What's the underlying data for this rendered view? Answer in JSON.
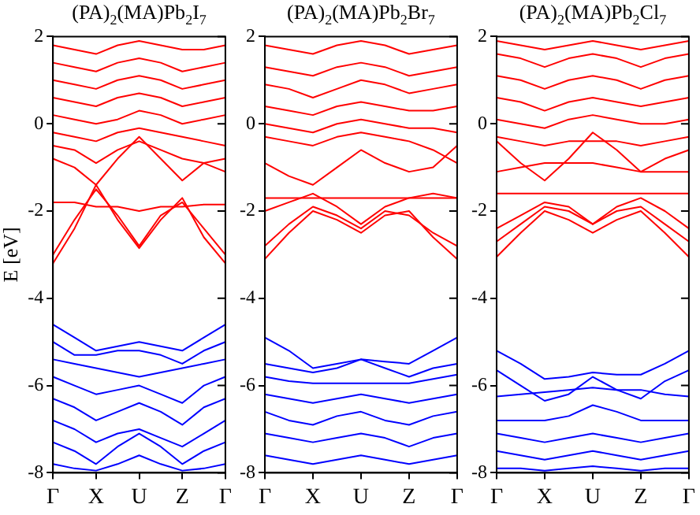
{
  "chart_data": [
    {
      "type": "line",
      "title": "(PA)$_{2}$(MA)Pb$_{2}$I$_{7}$",
      "ylabel": "E [eV]",
      "marker": "none",
      "line_style": "solid",
      "categories": [
        "Γ",
        null,
        "X",
        null,
        "U",
        null,
        "Z",
        null,
        "Γ"
      ],
      "ylim": [
        -8,
        2
      ],
      "yticks": [
        -8,
        -6,
        -4,
        -2,
        0,
        2
      ],
      "series": [
        {
          "color": "#ff0000",
          "values": [
            -3.2,
            -2.4,
            -1.4,
            -2.2,
            -2.85,
            -2.2,
            -1.7,
            -2.6,
            -3.2
          ]
        },
        {
          "color": "#ff0000",
          "values": [
            -3.0,
            -2.2,
            -1.5,
            -2.1,
            -2.8,
            -2.1,
            -1.8,
            -2.4,
            -3.0
          ]
        },
        {
          "color": "#ff0000",
          "values": [
            -1.8,
            -1.8,
            -1.9,
            -1.9,
            -2.0,
            -1.9,
            -1.9,
            -1.85,
            -1.85
          ]
        },
        {
          "color": "#ff0000",
          "values": [
            -0.8,
            -1.0,
            -1.4,
            -0.8,
            -0.3,
            -0.8,
            -1.3,
            -0.9,
            -0.8
          ]
        },
        {
          "color": "#ff0000",
          "values": [
            -0.5,
            -0.6,
            -0.9,
            -0.6,
            -0.4,
            -0.6,
            -0.8,
            -0.9,
            -1.1
          ]
        },
        {
          "color": "#ff0000",
          "values": [
            -0.2,
            -0.3,
            -0.4,
            -0.2,
            -0.1,
            -0.2,
            -0.3,
            -0.4,
            -0.5
          ]
        },
        {
          "color": "#ff0000",
          "values": [
            0.2,
            0.1,
            0,
            0.1,
            0.3,
            0.2,
            0,
            0.1,
            0.2
          ]
        },
        {
          "color": "#ff0000",
          "values": [
            0.6,
            0.5,
            0.4,
            0.6,
            0.7,
            0.6,
            0.4,
            0.5,
            0.6
          ]
        },
        {
          "color": "#ff0000",
          "values": [
            1.0,
            0.9,
            0.8,
            1.0,
            1.1,
            1.0,
            0.8,
            0.9,
            1.0
          ]
        },
        {
          "color": "#ff0000",
          "values": [
            1.4,
            1.3,
            1.2,
            1.4,
            1.5,
            1.4,
            1.2,
            1.3,
            1.4
          ]
        },
        {
          "color": "#ff0000",
          "values": [
            1.8,
            1.7,
            1.6,
            1.8,
            1.9,
            1.8,
            1.7,
            1.7,
            1.8
          ]
        },
        {
          "color": "#0000ff",
          "values": [
            -4.6,
            -4.9,
            -5.2,
            -5.1,
            -5.0,
            -5.1,
            -5.2,
            -4.9,
            -4.6
          ]
        },
        {
          "color": "#0000ff",
          "values": [
            -5.0,
            -5.3,
            -5.3,
            -5.2,
            -5.2,
            -5.3,
            -5.5,
            -5.2,
            -5.0
          ]
        },
        {
          "color": "#0000ff",
          "values": [
            -5.4,
            -5.5,
            -5.6,
            -5.7,
            -5.8,
            -5.7,
            -5.6,
            -5.5,
            -5.4
          ]
        },
        {
          "color": "#0000ff",
          "values": [
            -5.8,
            -6.0,
            -6.2,
            -6.1,
            -6.0,
            -6.2,
            -6.4,
            -6.0,
            -5.8
          ]
        },
        {
          "color": "#0000ff",
          "values": [
            -6.3,
            -6.5,
            -6.8,
            -6.6,
            -6.4,
            -6.6,
            -6.9,
            -6.5,
            -6.3
          ]
        },
        {
          "color": "#0000ff",
          "values": [
            -6.8,
            -7.0,
            -7.3,
            -7.1,
            -7.0,
            -7.2,
            -7.4,
            -7.1,
            -6.8
          ]
        },
        {
          "color": "#0000ff",
          "values": [
            -7.3,
            -7.5,
            -7.8,
            -7.4,
            -7.1,
            -7.4,
            -7.8,
            -7.5,
            -7.3
          ]
        },
        {
          "color": "#0000ff",
          "values": [
            -7.8,
            -7.9,
            -7.95,
            -7.8,
            -7.6,
            -7.8,
            -7.95,
            -7.9,
            -7.8
          ]
        }
      ]
    },
    {
      "type": "line",
      "title": "(PA)$_{2}$(MA)Pb$_{2}$Br$_{7}$",
      "marker": "none",
      "line_style": "solid",
      "categories": [
        "Γ",
        null,
        "X",
        null,
        "U",
        null,
        "Z",
        null,
        "Γ"
      ],
      "ylim": [
        -8,
        2
      ],
      "yticks": [
        -8,
        -6,
        -4,
        -2,
        0,
        2
      ],
      "series": [
        {
          "color": "#ff0000",
          "values": [
            -3.1,
            -2.5,
            -2.0,
            -2.2,
            -2.5,
            -2.1,
            -2.0,
            -2.6,
            -3.1
          ]
        },
        {
          "color": "#ff0000",
          "values": [
            -2.8,
            -2.3,
            -1.9,
            -2.1,
            -2.4,
            -2.0,
            -2.1,
            -2.5,
            -2.8
          ]
        },
        {
          "color": "#ff0000",
          "values": [
            -2.0,
            -1.8,
            -1.6,
            -1.9,
            -2.3,
            -1.9,
            -1.7,
            -1.6,
            -1.7
          ]
        },
        {
          "color": "#ff0000",
          "values": [
            -1.7,
            -1.7,
            -1.7,
            -1.7,
            -1.7,
            -1.7,
            -1.7,
            -1.7,
            -1.7
          ]
        },
        {
          "color": "#ff0000",
          "values": [
            -0.9,
            -1.2,
            -1.4,
            -1.0,
            -0.6,
            -0.9,
            -1.1,
            -1.0,
            -0.5
          ]
        },
        {
          "color": "#ff0000",
          "values": [
            -0.3,
            -0.4,
            -0.5,
            -0.3,
            -0.2,
            -0.3,
            -0.4,
            -0.6,
            -0.9
          ]
        },
        {
          "color": "#ff0000",
          "values": [
            0,
            -0.1,
            -0.2,
            0,
            0.1,
            0,
            -0.1,
            -0.1,
            -0.2
          ]
        },
        {
          "color": "#ff0000",
          "values": [
            0.4,
            0.3,
            0.2,
            0.4,
            0.5,
            0.4,
            0.3,
            0.3,
            0.4
          ]
        },
        {
          "color": "#ff0000",
          "values": [
            0.9,
            0.8,
            0.6,
            0.8,
            1.0,
            0.9,
            0.7,
            0.8,
            0.9
          ]
        },
        {
          "color": "#ff0000",
          "values": [
            1.3,
            1.2,
            1.1,
            1.3,
            1.4,
            1.3,
            1.1,
            1.2,
            1.3
          ]
        },
        {
          "color": "#ff0000",
          "values": [
            1.8,
            1.7,
            1.6,
            1.8,
            1.9,
            1.8,
            1.6,
            1.7,
            1.8
          ]
        },
        {
          "color": "#0000ff",
          "values": [
            -4.9,
            -5.2,
            -5.6,
            -5.5,
            -5.4,
            -5.45,
            -5.5,
            -5.2,
            -4.9
          ]
        },
        {
          "color": "#0000ff",
          "values": [
            -5.5,
            -5.6,
            -5.7,
            -5.6,
            -5.4,
            -5.6,
            -5.8,
            -5.6,
            -5.5
          ]
        },
        {
          "color": "#0000ff",
          "values": [
            -5.8,
            -5.9,
            -5.95,
            -5.95,
            -5.95,
            -5.95,
            -5.95,
            -5.85,
            -5.75
          ]
        },
        {
          "color": "#0000ff",
          "values": [
            -6.2,
            -6.3,
            -6.4,
            -6.3,
            -6.2,
            -6.3,
            -6.4,
            -6.3,
            -6.2
          ]
        },
        {
          "color": "#0000ff",
          "values": [
            -6.6,
            -6.8,
            -6.9,
            -6.7,
            -6.6,
            -6.8,
            -6.9,
            -6.7,
            -6.6
          ]
        },
        {
          "color": "#0000ff",
          "values": [
            -7.1,
            -7.2,
            -7.3,
            -7.2,
            -7.1,
            -7.2,
            -7.4,
            -7.2,
            -7.1
          ]
        },
        {
          "color": "#0000ff",
          "values": [
            -7.6,
            -7.7,
            -7.8,
            -7.7,
            -7.6,
            -7.7,
            -7.8,
            -7.7,
            -7.6
          ]
        }
      ]
    },
    {
      "type": "line",
      "title": "(PA)$_{2}$(MA)Pb$_{2}$Cl$_{7}$",
      "marker": "none",
      "line_style": "solid",
      "categories": [
        "Γ",
        null,
        "X",
        null,
        "U",
        null,
        "Z",
        null,
        "Γ"
      ],
      "ylim": [
        -8,
        2
      ],
      "yticks": [
        -8,
        -6,
        -4,
        -2,
        0,
        2
      ],
      "series": [
        {
          "color": "#ff0000",
          "values": [
            -3.05,
            -2.5,
            -2.0,
            -2.2,
            -2.5,
            -2.2,
            -2.0,
            -2.5,
            -3.05
          ]
        },
        {
          "color": "#ff0000",
          "values": [
            -2.7,
            -2.3,
            -1.9,
            -2.0,
            -2.3,
            -2.0,
            -1.9,
            -2.3,
            -2.7
          ]
        },
        {
          "color": "#ff0000",
          "values": [
            -2.4,
            -2.1,
            -1.8,
            -1.9,
            -2.3,
            -1.9,
            -1.7,
            -2.0,
            -2.4
          ]
        },
        {
          "color": "#ff0000",
          "values": [
            -1.6,
            -1.6,
            -1.6,
            -1.6,
            -1.6,
            -1.6,
            -1.6,
            -1.6,
            -1.6
          ]
        },
        {
          "color": "#ff0000",
          "values": [
            -1.1,
            -1.0,
            -0.9,
            -0.9,
            -0.9,
            -1.0,
            -1.1,
            -1.1,
            -1.1
          ]
        },
        {
          "color": "#ff0000",
          "values": [
            -0.4,
            -0.9,
            -1.3,
            -0.8,
            -0.2,
            -0.6,
            -1.1,
            -0.8,
            -0.6
          ]
        },
        {
          "color": "#ff0000",
          "values": [
            -0.3,
            -0.4,
            -0.5,
            -0.4,
            -0.4,
            -0.4,
            -0.5,
            -0.4,
            -0.3
          ]
        },
        {
          "color": "#ff0000",
          "values": [
            0.1,
            0,
            -0.1,
            0.1,
            0.2,
            0.1,
            0,
            0,
            0.1
          ]
        },
        {
          "color": "#ff0000",
          "values": [
            0.6,
            0.5,
            0.3,
            0.5,
            0.6,
            0.5,
            0.4,
            0.5,
            0.6
          ]
        },
        {
          "color": "#ff0000",
          "values": [
            1.1,
            1.0,
            0.8,
            1.0,
            1.1,
            1.0,
            0.8,
            1.0,
            1.1
          ]
        },
        {
          "color": "#ff0000",
          "values": [
            1.6,
            1.5,
            1.3,
            1.5,
            1.6,
            1.5,
            1.3,
            1.5,
            1.6
          ]
        },
        {
          "color": "#ff0000",
          "values": [
            1.9,
            1.8,
            1.7,
            1.8,
            1.9,
            1.8,
            1.7,
            1.8,
            1.9
          ]
        },
        {
          "color": "#0000ff",
          "values": [
            -5.2,
            -5.5,
            -5.85,
            -5.8,
            -5.7,
            -5.75,
            -5.75,
            -5.5,
            -5.2
          ]
        },
        {
          "color": "#0000ff",
          "values": [
            -5.65,
            -6.0,
            -6.35,
            -6.2,
            -5.8,
            -6.1,
            -6.3,
            -5.9,
            -5.65
          ]
        },
        {
          "color": "#0000ff",
          "values": [
            -6.25,
            -6.2,
            -6.15,
            -6.1,
            -6.05,
            -6.1,
            -6.1,
            -6.2,
            -6.25
          ]
        },
        {
          "color": "#0000ff",
          "values": [
            -6.8,
            -6.8,
            -6.8,
            -6.7,
            -6.45,
            -6.6,
            -6.8,
            -6.8,
            -6.8
          ]
        },
        {
          "color": "#0000ff",
          "values": [
            -7.1,
            -7.2,
            -7.3,
            -7.2,
            -7.1,
            -7.2,
            -7.3,
            -7.2,
            -7.1
          ]
        },
        {
          "color": "#0000ff",
          "values": [
            -7.5,
            -7.6,
            -7.7,
            -7.6,
            -7.5,
            -7.6,
            -7.7,
            -7.6,
            -7.5
          ]
        },
        {
          "color": "#0000ff",
          "values": [
            -7.9,
            -7.9,
            -7.95,
            -7.9,
            -7.85,
            -7.9,
            -7.95,
            -7.9,
            -7.9
          ]
        }
      ]
    }
  ]
}
